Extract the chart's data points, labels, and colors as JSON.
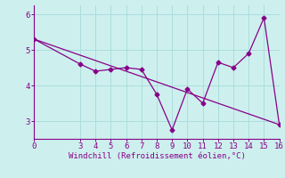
{
  "xlabel": "Windchill (Refroidissement éolien,°C)",
  "background_color": "#cdf0ee",
  "line_color": "#880088",
  "grid_color": "#aadddd",
  "spine_color": "#880088",
  "xlim": [
    0,
    16
  ],
  "ylim": [
    2.5,
    6.25
  ],
  "xticks": [
    0,
    3,
    4,
    5,
    6,
    7,
    8,
    9,
    10,
    11,
    12,
    13,
    14,
    15,
    16
  ],
  "yticks": [
    3,
    4,
    5,
    6
  ],
  "curve_x": [
    0,
    3,
    4,
    5,
    6,
    7,
    8,
    9,
    10,
    11,
    12,
    13,
    14,
    15,
    16
  ],
  "curve_y": [
    5.3,
    4.6,
    4.4,
    4.45,
    4.5,
    4.45,
    3.75,
    2.75,
    3.9,
    3.5,
    4.65,
    4.5,
    4.9,
    5.9,
    2.9
  ],
  "line_x": [
    0,
    16
  ],
  "line_y": [
    5.3,
    2.9
  ],
  "tick_fontsize": 6.5,
  "label_fontsize": 6.5
}
